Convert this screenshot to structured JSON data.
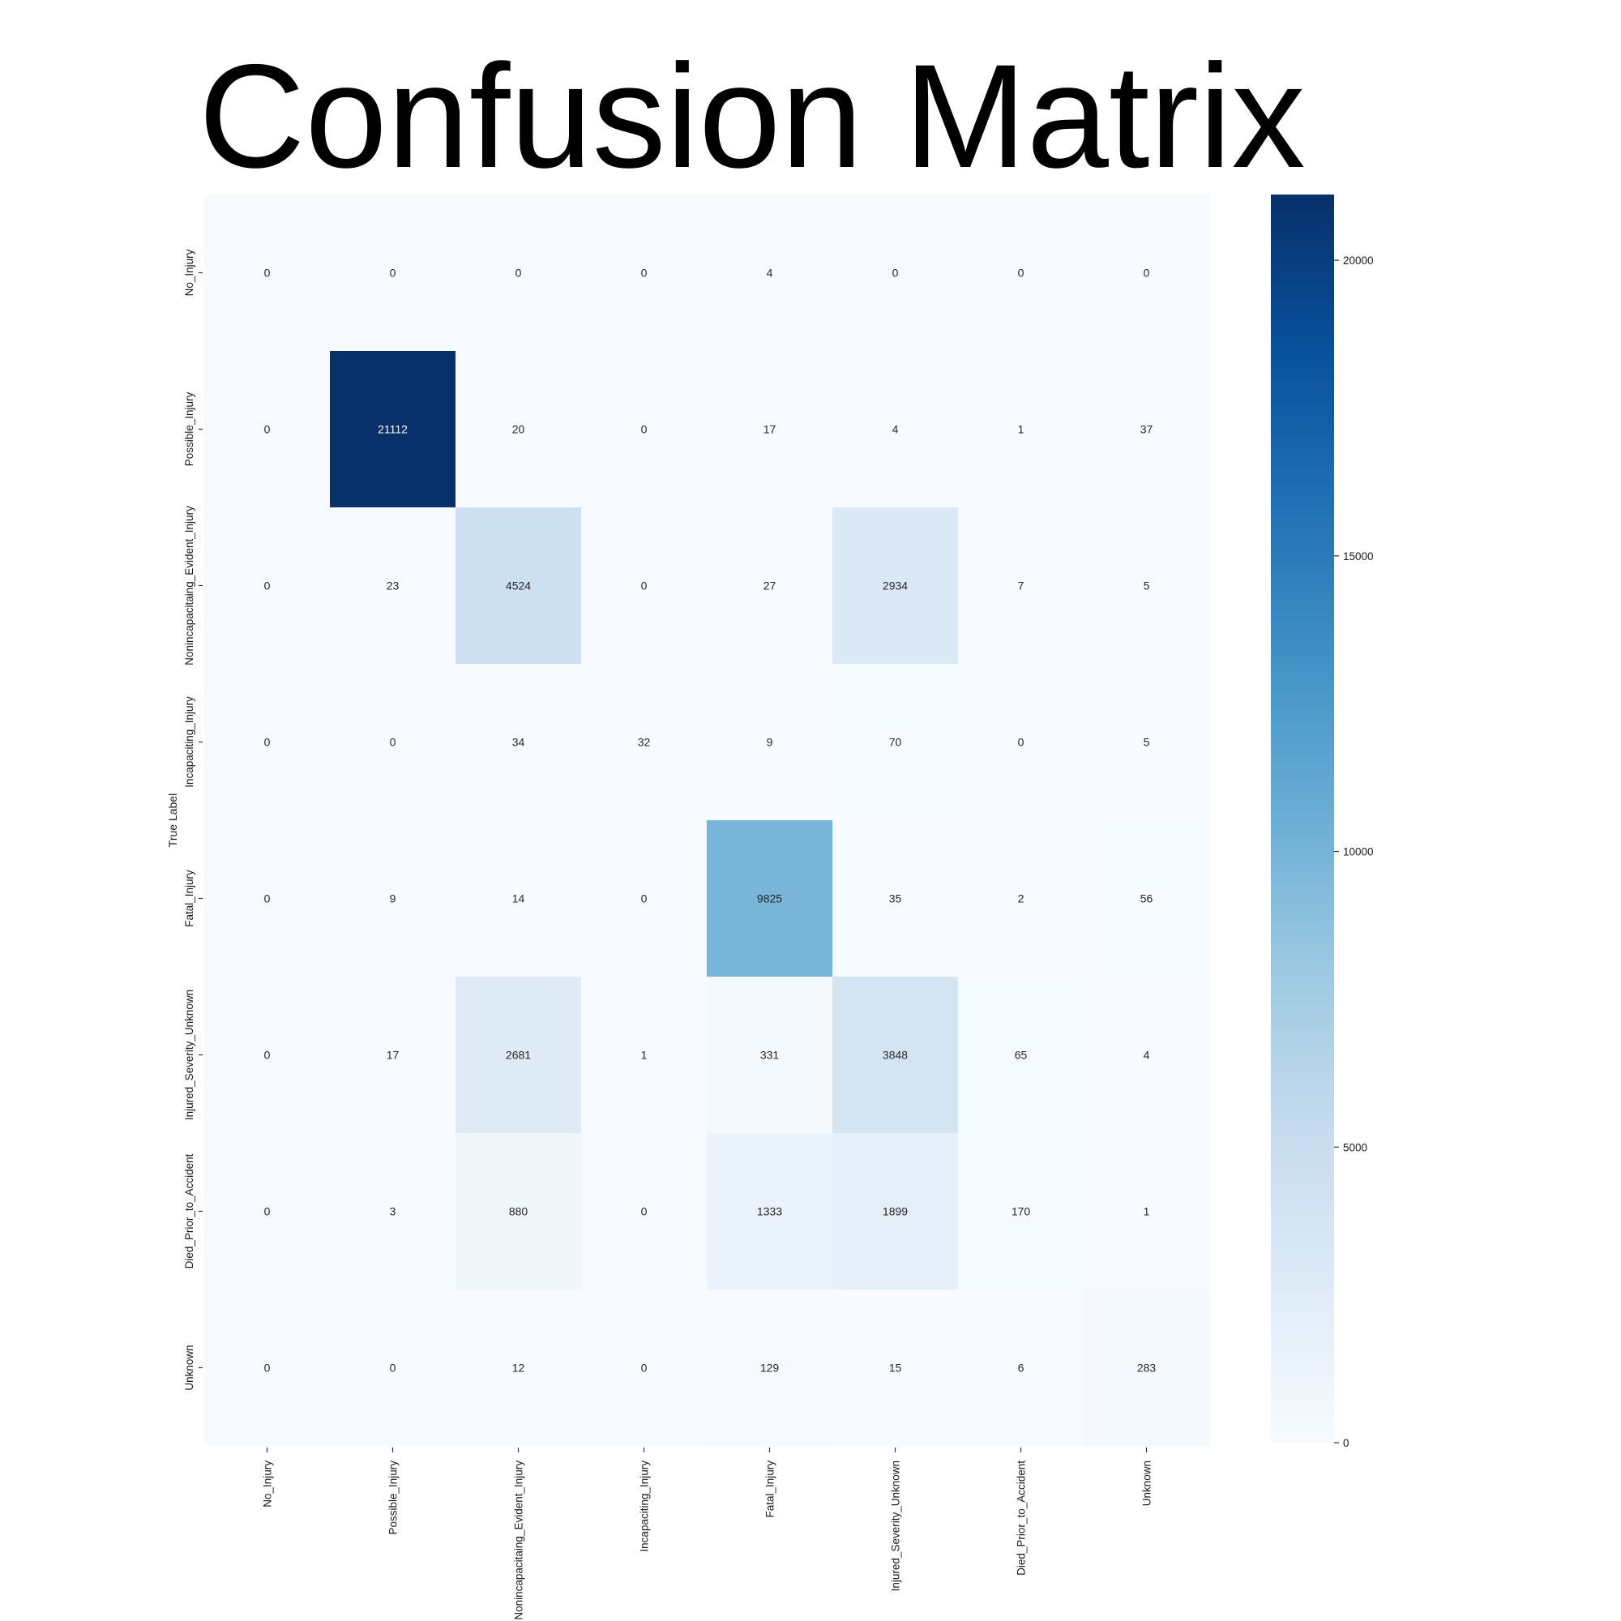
{
  "chart_data": {
    "type": "heatmap",
    "title": "Confusion Matrix",
    "ylabel": "True Label",
    "xlabel": "",
    "x_categories": [
      "No_Injury",
      "Possible_Injury",
      "Nonincapacitaing_Evident_Injury",
      "Incapaciting_Injury",
      "Fatal_Injury",
      "Injured_Severity_Unknown",
      "Died_Prior_to_Accident",
      "Unknown"
    ],
    "y_categories": [
      "No_Injury",
      "Possible_Injury",
      "Nonincapacitaing_Evident_Injury",
      "Incapaciting_Injury",
      "Fatal_Injury",
      "Injured_Severity_Unknown",
      "Died_Prior_to_Accident",
      "Unknown"
    ],
    "values": [
      [
        0,
        0,
        0,
        0,
        4,
        0,
        0,
        0
      ],
      [
        0,
        21112,
        20,
        0,
        17,
        4,
        1,
        37
      ],
      [
        0,
        23,
        4524,
        0,
        27,
        2934,
        7,
        5
      ],
      [
        0,
        0,
        34,
        32,
        9,
        70,
        0,
        5
      ],
      [
        0,
        9,
        14,
        0,
        9825,
        35,
        2,
        56
      ],
      [
        0,
        17,
        2681,
        1,
        331,
        3848,
        65,
        4
      ],
      [
        0,
        3,
        880,
        0,
        1333,
        1899,
        170,
        1
      ],
      [
        0,
        0,
        12,
        0,
        129,
        15,
        6,
        283
      ]
    ],
    "colormap": "Blues",
    "colorbar": {
      "range": [
        0,
        21112
      ],
      "ticks": [
        0,
        5000,
        10000,
        15000,
        20000
      ],
      "tick_labels": [
        "0",
        "5000",
        "10000",
        "15000",
        "20000"
      ]
    },
    "grid": false
  }
}
